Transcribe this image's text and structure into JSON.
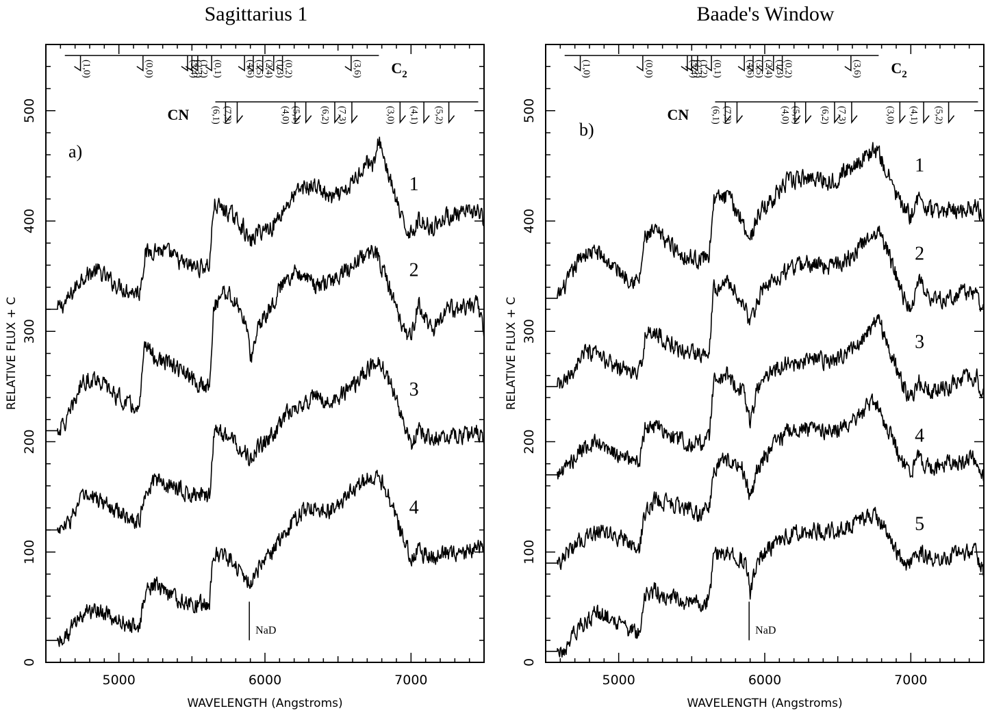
{
  "chart_data": [
    {
      "type": "line",
      "title": "Sagittarius 1",
      "panel_label": "a)",
      "xlabel": "WAVELENGTH (Angstroms)",
      "ylabel": "RELATIVE FLUX + C",
      "xlim": [
        4500,
        7500
      ],
      "ylim": [
        0,
        560
      ],
      "xticks": [
        5000,
        6000,
        7000
      ],
      "yticks": [
        0,
        100,
        200,
        300,
        400,
        500
      ],
      "series": [
        {
          "name": "1",
          "label_at": [
            7020,
            428
          ],
          "x": [
            4580,
            4650,
            4750,
            4850,
            4950,
            5050,
            5140,
            5180,
            5250,
            5350,
            5450,
            5550,
            5620,
            5650,
            5750,
            5850,
            5880,
            5900,
            5950,
            6050,
            6150,
            6250,
            6350,
            6450,
            6550,
            6650,
            6700,
            6750,
            6780,
            6850,
            6950,
            7000,
            7050,
            7150,
            7250,
            7350,
            7450,
            7500
          ],
          "y": [
            320,
            328,
            350,
            355,
            345,
            338,
            335,
            370,
            375,
            370,
            360,
            358,
            360,
            415,
            408,
            395,
            385,
            380,
            390,
            395,
            415,
            430,
            432,
            420,
            425,
            445,
            455,
            450,
            475,
            440,
            395,
            390,
            400,
            395,
            405,
            405,
            410,
            400
          ]
        },
        {
          "name": "2",
          "label_at": [
            7020,
            350
          ],
          "x": [
            4580,
            4650,
            4750,
            4850,
            4950,
            5050,
            5140,
            5180,
            5250,
            5350,
            5450,
            5550,
            5620,
            5650,
            5700,
            5750,
            5850,
            5880,
            5900,
            5950,
            6050,
            6150,
            6250,
            6350,
            6450,
            6550,
            6650,
            6700,
            6750,
            6780,
            6850,
            6950,
            7000,
            7050,
            7150,
            7250,
            7350,
            7450,
            7500
          ],
          "y": [
            210,
            220,
            255,
            258,
            245,
            235,
            228,
            290,
            275,
            270,
            262,
            250,
            252,
            320,
            335,
            335,
            315,
            300,
            270,
            305,
            325,
            350,
            355,
            340,
            345,
            355,
            365,
            370,
            375,
            365,
            340,
            300,
            295,
            325,
            300,
            320,
            320,
            325,
            300
          ]
        },
        {
          "name": "3",
          "label_at": [
            7020,
            242
          ],
          "x": [
            4580,
            4650,
            4750,
            4850,
            4950,
            5050,
            5140,
            5180,
            5250,
            5350,
            5450,
            5550,
            5620,
            5650,
            5750,
            5850,
            5880,
            5900,
            5950,
            6050,
            6150,
            6250,
            6350,
            6450,
            6550,
            6650,
            6700,
            6750,
            6780,
            6850,
            6950,
            7000,
            7050,
            7150,
            7250,
            7350,
            7450,
            7500
          ],
          "y": [
            120,
            125,
            150,
            148,
            140,
            132,
            128,
            155,
            165,
            160,
            155,
            150,
            150,
            210,
            205,
            195,
            188,
            182,
            195,
            205,
            225,
            232,
            240,
            235,
            245,
            255,
            265,
            270,
            275,
            255,
            220,
            195,
            210,
            205,
            205,
            205,
            210,
            200
          ]
        },
        {
          "name": "4",
          "label_at": [
            7020,
            135
          ],
          "x": [
            4580,
            4650,
            4750,
            4850,
            4950,
            5050,
            5140,
            5180,
            5250,
            5350,
            5450,
            5550,
            5620,
            5650,
            5750,
            5850,
            5880,
            5900,
            5950,
            6050,
            6150,
            6250,
            6350,
            6450,
            6550,
            6650,
            6700,
            6750,
            6780,
            6850,
            6950,
            7000,
            7050,
            7150,
            7250,
            7350,
            7450,
            7500
          ],
          "y": [
            20,
            25,
            45,
            48,
            40,
            35,
            30,
            65,
            70,
            60,
            55,
            52,
            55,
            100,
            95,
            80,
            75,
            70,
            85,
            100,
            120,
            135,
            142,
            138,
            150,
            160,
            168,
            170,
            168,
            150,
            110,
            95,
            100,
            95,
            100,
            98,
            105,
            100
          ]
        }
      ],
      "annotations": {
        "na_d": {
          "label": "NaD",
          "x": 5893
        },
        "c2": {
          "label": "C",
          "subscript": "2",
          "bands": [
            {
              "label": "(1,0)",
              "x": 4737
            },
            {
              "label": "(0,0)",
              "x": 5165
            },
            {
              "label": "(3,4)",
              "x": 5470
            },
            {
              "label": "(2,3)",
              "x": 5500
            },
            {
              "label": "(1,2)",
              "x": 5540
            },
            {
              "label": "(0,1)",
              "x": 5635
            },
            {
              "label": "(4,6)",
              "x": 5860
            },
            {
              "label": "(3,5)",
              "x": 5920
            },
            {
              "label": "(2,4)",
              "x": 5985
            },
            {
              "label": "(1,3)",
              "x": 6060
            },
            {
              "label": "(0,2)",
              "x": 6120
            },
            {
              "label": "(3,6)",
              "x": 6590
            }
          ]
        },
        "cn": {
          "label": "CN",
          "bands": [
            {
              "label": "(6,1)",
              "x": 5730
            },
            {
              "label": "(7,2)",
              "x": 5810
            },
            {
              "label": "(4,0)",
              "x": 6206
            },
            {
              "label": "(5,1)",
              "x": 6280
            },
            {
              "label": "(6,2)",
              "x": 6478
            },
            {
              "label": "(7,3)",
              "x": 6595
            },
            {
              "label": "(3,0)",
              "x": 6925
            },
            {
              "label": "(4,1)",
              "x": 7088
            },
            {
              "label": "(5,2)",
              "x": 7259
            }
          ]
        }
      }
    },
    {
      "type": "line",
      "title": "Baade's Window",
      "panel_label": "b)",
      "xlabel": "WAVELENGTH (Angstroms)",
      "ylabel": "RELATIVE FLUX + C",
      "xlim": [
        4500,
        7500
      ],
      "ylim": [
        0,
        560
      ],
      "xticks": [
        5000,
        6000,
        7000
      ],
      "yticks": [
        0,
        100,
        200,
        300,
        400,
        500
      ],
      "series": [
        {
          "name": "1",
          "label_at": [
            7060,
            445
          ],
          "x": [
            4580,
            4650,
            4750,
            4850,
            4950,
            5050,
            5140,
            5180,
            5250,
            5350,
            5450,
            5550,
            5620,
            5650,
            5750,
            5850,
            5880,
            5900,
            5950,
            6050,
            6150,
            6250,
            6350,
            6450,
            6550,
            6650,
            6700,
            6750,
            6780,
            6850,
            6950,
            7000,
            7050,
            7150,
            7250,
            7350,
            7450,
            7500
          ],
          "y": [
            330,
            345,
            370,
            372,
            360,
            350,
            345,
            385,
            390,
            380,
            368,
            365,
            370,
            420,
            422,
            400,
            390,
            382,
            405,
            420,
            435,
            438,
            440,
            435,
            445,
            455,
            460,
            465,
            460,
            440,
            410,
            405,
            420,
            408,
            410,
            410,
            415,
            400
          ]
        },
        {
          "name": "2",
          "label_at": [
            7060,
            365
          ],
          "x": [
            4580,
            4650,
            4750,
            4850,
            4950,
            5050,
            5140,
            5180,
            5250,
            5350,
            5450,
            5550,
            5620,
            5650,
            5750,
            5850,
            5880,
            5900,
            5950,
            6050,
            6150,
            6250,
            6350,
            6450,
            6550,
            6650,
            6700,
            6750,
            6780,
            6850,
            6950,
            7000,
            7050,
            7150,
            7250,
            7350,
            7450,
            7500
          ],
          "y": [
            250,
            255,
            280,
            278,
            270,
            265,
            260,
            295,
            300,
            288,
            282,
            280,
            285,
            340,
            345,
            325,
            315,
            305,
            330,
            345,
            355,
            360,
            362,
            358,
            365,
            375,
            385,
            390,
            392,
            370,
            330,
            320,
            345,
            330,
            330,
            335,
            335,
            320
          ]
        },
        {
          "name": "3",
          "label_at": [
            7060,
            285
          ],
          "x": [
            4580,
            4650,
            4750,
            4850,
            4950,
            5050,
            5140,
            5180,
            5250,
            5350,
            5450,
            5550,
            5620,
            5650,
            5750,
            5850,
            5880,
            5900,
            5950,
            6050,
            6150,
            6250,
            6350,
            6450,
            6550,
            6650,
            6700,
            6750,
            6780,
            6850,
            6950,
            7000,
            7050,
            7150,
            7250,
            7350,
            7450,
            7500
          ],
          "y": [
            170,
            178,
            195,
            198,
            190,
            185,
            180,
            210,
            215,
            205,
            200,
            198,
            205,
            255,
            260,
            245,
            230,
            215,
            250,
            265,
            270,
            272,
            275,
            270,
            280,
            290,
            300,
            305,
            310,
            285,
            250,
            240,
            255,
            245,
            250,
            255,
            260,
            240
          ]
        },
        {
          "name": "4",
          "label_at": [
            7060,
            200
          ],
          "x": [
            4580,
            4650,
            4750,
            4850,
            4950,
            5050,
            5140,
            5180,
            5250,
            5350,
            5450,
            5550,
            5620,
            5650,
            5750,
            5850,
            5880,
            5900,
            5950,
            6050,
            6150,
            6250,
            6350,
            6450,
            6550,
            6650,
            6700,
            6750,
            6780,
            6850,
            6950,
            7000,
            7050,
            7150,
            7250,
            7350,
            7450,
            7500
          ],
          "y": [
            90,
            100,
            112,
            118,
            115,
            110,
            102,
            135,
            148,
            145,
            140,
            135,
            140,
            175,
            185,
            175,
            160,
            145,
            175,
            195,
            208,
            210,
            212,
            210,
            215,
            225,
            232,
            235,
            230,
            210,
            180,
            172,
            185,
            175,
            180,
            180,
            185,
            170
          ]
        },
        {
          "name": "5",
          "label_at": [
            7060,
            120
          ],
          "x": [
            4580,
            4650,
            4750,
            4850,
            4950,
            5050,
            5140,
            5180,
            5250,
            5350,
            5450,
            5550,
            5620,
            5650,
            5750,
            5850,
            5880,
            5900,
            5950,
            6050,
            6150,
            6250,
            6350,
            6450,
            6550,
            6650,
            6700,
            6750,
            6780,
            6850,
            6950,
            7000,
            7050,
            7150,
            7250,
            7350,
            7450,
            7500
          ],
          "y": [
            10,
            15,
            35,
            45,
            40,
            32,
            25,
            60,
            65,
            58,
            55,
            52,
            58,
            95,
            100,
            92,
            85,
            60,
            95,
            105,
            115,
            118,
            120,
            118,
            122,
            128,
            132,
            135,
            130,
            115,
            85,
            90,
            100,
            95,
            95,
            98,
            100,
            80
          ]
        }
      ],
      "annotations": {
        "na_d": {
          "label": "NaD",
          "x": 5893
        },
        "c2": {
          "label": "C",
          "subscript": "2",
          "bands": [
            {
              "label": "(1,0)",
              "x": 4737
            },
            {
              "label": "(0,0)",
              "x": 5165
            },
            {
              "label": "(3,4)",
              "x": 5470
            },
            {
              "label": "(2,3)",
              "x": 5500
            },
            {
              "label": "(1,2)",
              "x": 5540
            },
            {
              "label": "(0,1)",
              "x": 5635
            },
            {
              "label": "(4,6)",
              "x": 5860
            },
            {
              "label": "(3,5)",
              "x": 5920
            },
            {
              "label": "(2,4)",
              "x": 5985
            },
            {
              "label": "(1,3)",
              "x": 6060
            },
            {
              "label": "(0,2)",
              "x": 6120
            },
            {
              "label": "(3,6)",
              "x": 6590
            }
          ]
        },
        "cn": {
          "label": "CN",
          "bands": [
            {
              "label": "(6,1)",
              "x": 5730
            },
            {
              "label": "(7,2)",
              "x": 5810
            },
            {
              "label": "(4,0)",
              "x": 6206
            },
            {
              "label": "(5,1)",
              "x": 6280
            },
            {
              "label": "(6,2)",
              "x": 6478
            },
            {
              "label": "(7,3)",
              "x": 6595
            },
            {
              "label": "(3,0)",
              "x": 6925
            },
            {
              "label": "(4,1)",
              "x": 7088
            },
            {
              "label": "(5,2)",
              "x": 7259
            }
          ]
        }
      }
    }
  ]
}
